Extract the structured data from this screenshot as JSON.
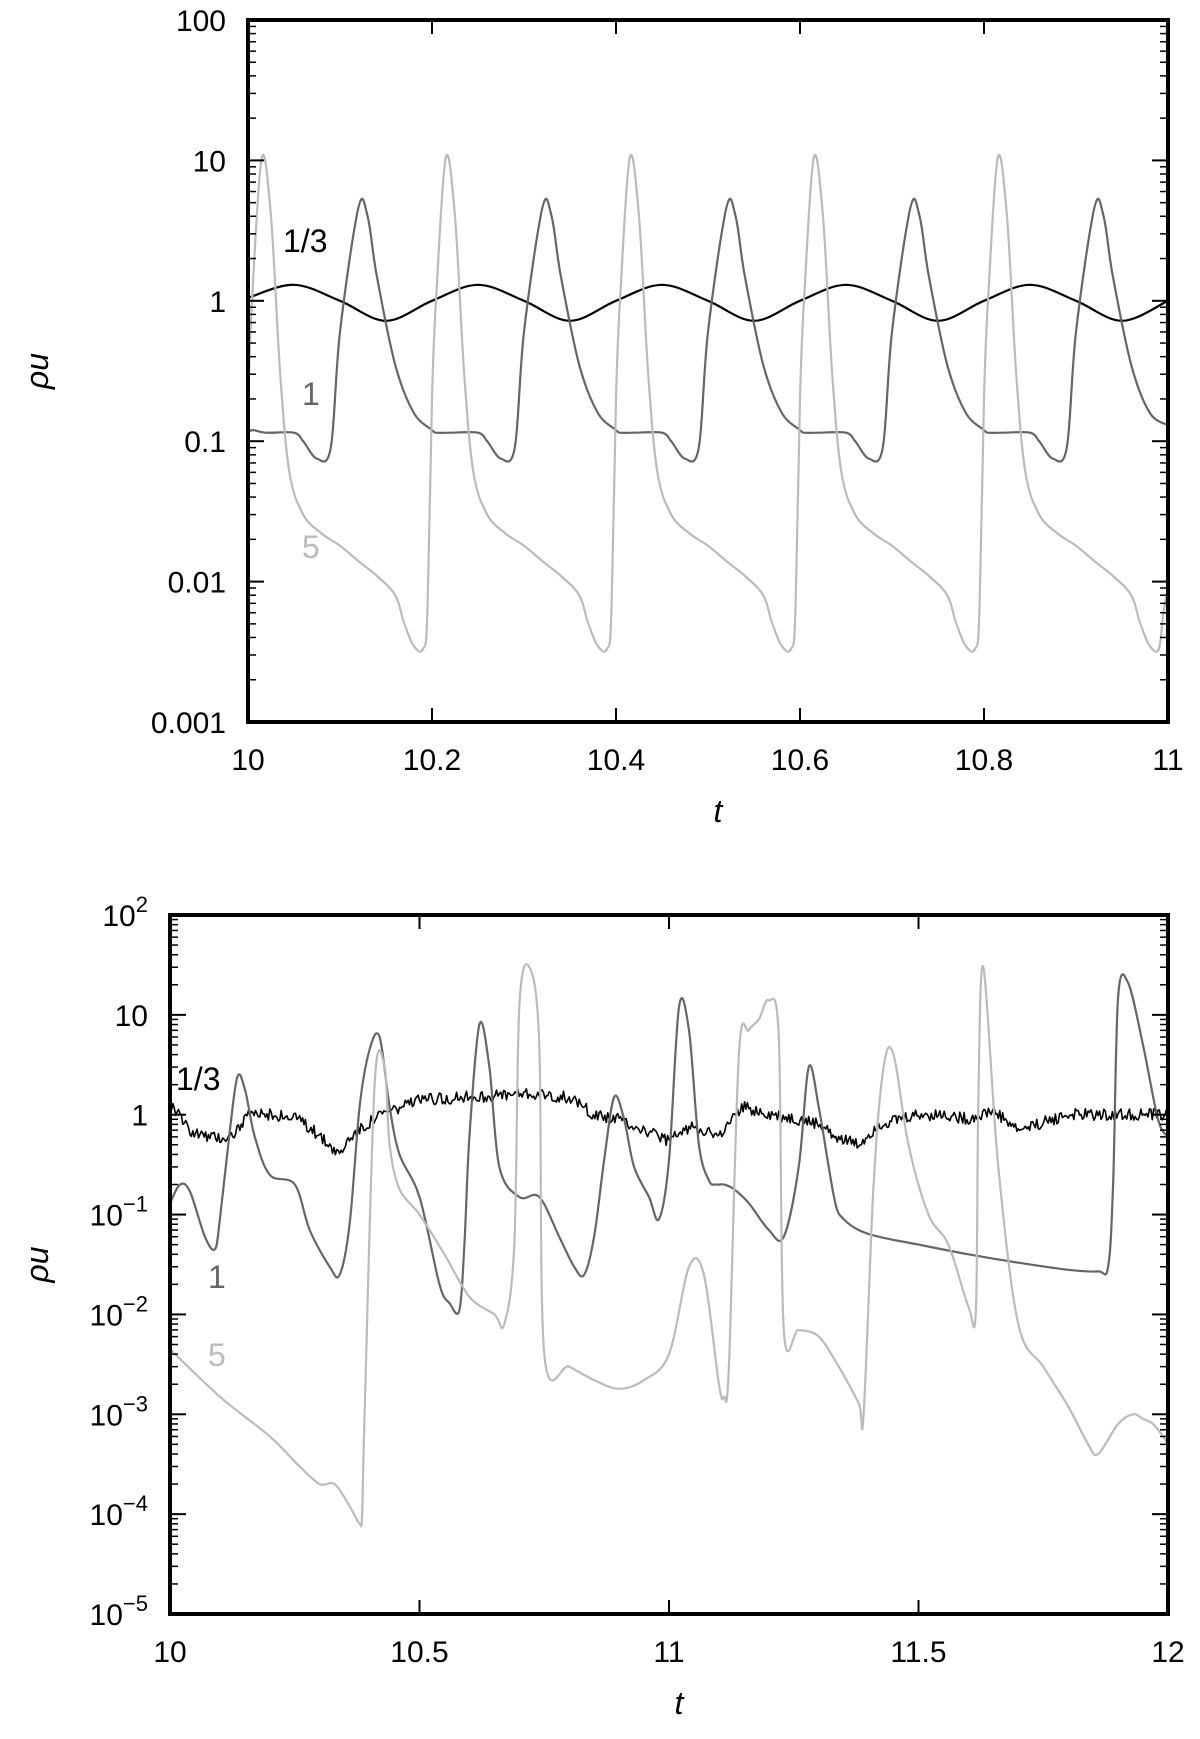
{
  "chart_data": [
    {
      "type": "line",
      "xlabel": "t",
      "ylabel": "ρu",
      "xlim": [
        10,
        11
      ],
      "ylim": [
        0.001,
        100
      ],
      "yscale": "log",
      "grid": false,
      "xticks": [
        10,
        10.2,
        10.4,
        10.6,
        10.8,
        11
      ],
      "xtick_labels": [
        "10",
        "10.2",
        "10.4",
        "10.6",
        "10.8",
        "11"
      ],
      "yticks": [
        0.001,
        0.01,
        0.1,
        1,
        10,
        100
      ],
      "ytick_labels": [
        "0.001",
        "0.01",
        "0.1",
        "1",
        "10",
        "100"
      ],
      "series": [
        {
          "name": "1/3",
          "color": "#000000",
          "x": [
            10,
            10.05,
            10.1,
            10.15,
            10.2,
            10.25,
            10.3,
            10.35,
            10.4,
            10.45,
            10.5,
            10.55,
            10.6,
            10.65,
            10.7,
            10.75,
            10.8,
            10.85,
            10.9,
            10.95,
            11
          ],
          "y": [
            1.05,
            1.3,
            1.0,
            0.72,
            1.0,
            1.3,
            1.0,
            0.72,
            1.0,
            1.3,
            1.0,
            0.72,
            1.0,
            1.3,
            1.0,
            0.72,
            1.0,
            1.3,
            1.0,
            0.72,
            1.0
          ]
        },
        {
          "name": "1",
          "color": "#666666",
          "x": [
            10,
            10.005,
            10.02,
            10.05,
            10.06,
            10.075,
            10.09,
            10.1,
            10.12,
            10.13,
            10.14,
            10.16,
            10.18,
            10.2,
            10.205,
            10.22,
            10.25,
            10.26,
            10.275,
            10.29,
            10.3,
            10.32,
            10.33,
            10.34,
            10.36,
            10.38,
            10.4,
            10.405,
            10.42,
            10.45,
            10.46,
            10.475,
            10.49,
            10.5,
            10.52,
            10.53,
            10.54,
            10.56,
            10.58,
            10.6,
            10.605,
            10.62,
            10.65,
            10.66,
            10.675,
            10.69,
            10.7,
            10.72,
            10.73,
            10.74,
            10.76,
            10.78,
            10.8,
            10.805,
            10.82,
            10.85,
            10.86,
            10.875,
            10.89,
            10.9,
            10.92,
            10.93,
            10.94,
            10.96,
            10.98,
            11
          ],
          "y": [
            0.115,
            0.12,
            0.115,
            0.115,
            0.1,
            0.075,
            0.09,
            0.6,
            4.6,
            4.0,
            1.5,
            0.35,
            0.16,
            0.12,
            0.115,
            0.115,
            0.115,
            0.1,
            0.075,
            0.09,
            0.6,
            4.6,
            4.0,
            1.5,
            0.35,
            0.16,
            0.12,
            0.115,
            0.115,
            0.115,
            0.1,
            0.075,
            0.09,
            0.6,
            4.6,
            4.0,
            1.5,
            0.35,
            0.16,
            0.12,
            0.115,
            0.115,
            0.115,
            0.1,
            0.075,
            0.09,
            0.6,
            4.6,
            4.0,
            1.5,
            0.35,
            0.16,
            0.12,
            0.115,
            0.115,
            0.115,
            0.1,
            0.075,
            0.09,
            0.6,
            4.6,
            4.0,
            1.5,
            0.35,
            0.16,
            0.13
          ]
        },
        {
          "name": "5",
          "color": "#bbbbbb",
          "x": [
            10,
            10.005,
            10.015,
            10.025,
            10.035,
            10.045,
            10.06,
            10.08,
            10.1,
            10.12,
            10.14,
            10.16,
            10.17,
            10.18,
            10.19,
            10.195,
            10.2,
            10.205,
            10.215,
            10.225,
            10.235,
            10.245,
            10.26,
            10.28,
            10.3,
            10.32,
            10.34,
            10.36,
            10.37,
            10.38,
            10.39,
            10.395,
            10.4,
            10.405,
            10.415,
            10.425,
            10.435,
            10.445,
            10.46,
            10.48,
            10.5,
            10.52,
            10.54,
            10.56,
            10.57,
            10.58,
            10.59,
            10.595,
            10.6,
            10.605,
            10.615,
            10.625,
            10.635,
            10.645,
            10.66,
            10.68,
            10.7,
            10.72,
            10.74,
            10.76,
            10.77,
            10.78,
            10.79,
            10.795,
            10.8,
            10.805,
            10.815,
            10.825,
            10.835,
            10.845,
            10.86,
            10.88,
            10.9,
            10.92,
            10.94,
            10.96,
            10.97,
            10.98,
            10.99,
            10.995,
            11
          ],
          "y": [
            0.2,
            1.2,
            10.5,
            4.0,
            0.3,
            0.06,
            0.03,
            0.022,
            0.018,
            0.014,
            0.011,
            0.008,
            0.005,
            0.0035,
            0.0033,
            0.006,
            0.2,
            1.2,
            10.5,
            4.0,
            0.3,
            0.06,
            0.03,
            0.022,
            0.018,
            0.014,
            0.011,
            0.008,
            0.005,
            0.0035,
            0.0033,
            0.006,
            0.2,
            1.2,
            10.5,
            4.0,
            0.3,
            0.06,
            0.03,
            0.022,
            0.018,
            0.014,
            0.011,
            0.008,
            0.005,
            0.0035,
            0.0033,
            0.006,
            0.2,
            1.2,
            10.5,
            4.0,
            0.3,
            0.06,
            0.03,
            0.022,
            0.018,
            0.014,
            0.011,
            0.008,
            0.005,
            0.0035,
            0.0033,
            0.006,
            0.2,
            1.2,
            10.5,
            4.0,
            0.3,
            0.06,
            0.03,
            0.022,
            0.018,
            0.014,
            0.011,
            0.008,
            0.005,
            0.0035,
            0.0033,
            0.006,
            0.009
          ]
        }
      ]
    },
    {
      "type": "line",
      "xlabel": "t",
      "ylabel": "ρu",
      "xlim": [
        10,
        12
      ],
      "ylim": [
        1e-05,
        100
      ],
      "yscale": "log",
      "grid": false,
      "xticks": [
        10,
        10.5,
        11,
        11.5,
        12
      ],
      "xtick_labels": [
        "10",
        "10.5",
        "11",
        "11.5",
        "12"
      ],
      "yticks": [
        1e-05,
        0.0001,
        0.001,
        0.01,
        0.1,
        1,
        10,
        100
      ],
      "ytick_labels": [
        {
          "base": "10",
          "exp": "−5"
        },
        {
          "base": "10",
          "exp": "−4"
        },
        {
          "base": "10",
          "exp": "−3"
        },
        {
          "base": "10",
          "exp": "−2"
        },
        {
          "base": "10",
          "exp": "−1"
        },
        {
          "base": "1",
          "exp": ""
        },
        {
          "base": "10",
          "exp": ""
        },
        {
          "base": "10",
          "exp": "2"
        }
      ],
      "series": [
        {
          "name": "1/3",
          "color": "#000000",
          "noise": 0.12,
          "x": [
            10,
            10.04,
            10.08,
            10.12,
            10.16,
            10.2,
            10.26,
            10.32,
            10.34,
            10.36,
            10.42,
            10.5,
            10.6,
            10.7,
            10.8,
            10.85,
            10.9,
            10.95,
            11.0,
            11.05,
            11.1,
            11.15,
            11.2,
            11.25,
            11.3,
            11.34,
            11.38,
            11.42,
            11.5,
            11.55,
            11.6,
            11.65,
            11.7,
            11.8,
            11.9,
            12.0
          ],
          "y": [
            1.3,
            0.7,
            0.6,
            0.6,
            1.0,
            1.0,
            0.9,
            0.5,
            0.4,
            0.6,
            1.0,
            1.4,
            1.5,
            1.6,
            1.5,
            1.0,
            0.9,
            0.7,
            0.55,
            0.8,
            0.6,
            1.2,
            1.0,
            0.9,
            0.8,
            0.6,
            0.5,
            0.8,
            1.0,
            1.0,
            0.9,
            1.1,
            0.7,
            1.0,
            1.0,
            1.0
          ]
        },
        {
          "name": "1",
          "color": "#666666",
          "x": [
            10,
            10.02,
            10.04,
            10.07,
            10.09,
            10.1,
            10.12,
            10.135,
            10.15,
            10.17,
            10.2,
            10.25,
            10.28,
            10.32,
            10.34,
            10.36,
            10.38,
            10.4,
            10.42,
            10.44,
            10.46,
            10.5,
            10.54,
            10.56,
            10.58,
            10.59,
            10.6,
            10.62,
            10.64,
            10.66,
            10.7,
            10.74,
            10.78,
            10.81,
            10.83,
            10.85,
            10.87,
            10.89,
            10.91,
            10.93,
            10.96,
            10.98,
            11.0,
            11.02,
            11.04,
            11.06,
            11.08,
            11.095,
            11.11,
            11.13,
            11.16,
            11.2,
            11.23,
            11.26,
            11.28,
            11.3,
            11.32,
            11.335,
            11.35,
            11.38,
            11.42,
            11.5,
            11.6,
            11.7,
            11.8,
            11.86,
            11.88,
            11.89,
            11.9,
            11.92,
            11.95,
            11.98,
            12.0
          ],
          "y": [
            0.13,
            0.2,
            0.17,
            0.06,
            0.045,
            0.09,
            0.7,
            2.4,
            1.8,
            0.6,
            0.25,
            0.2,
            0.07,
            0.03,
            0.025,
            0.08,
            1.2,
            4.5,
            6.0,
            1.2,
            0.4,
            0.15,
            0.02,
            0.013,
            0.011,
            0.05,
            0.6,
            8.0,
            3.0,
            0.3,
            0.15,
            0.15,
            0.06,
            0.03,
            0.025,
            0.06,
            0.35,
            1.5,
            0.9,
            0.3,
            0.15,
            0.09,
            0.35,
            12.0,
            7.0,
            0.5,
            0.22,
            0.2,
            0.2,
            0.18,
            0.13,
            0.07,
            0.06,
            0.3,
            3.0,
            1.2,
            0.3,
            0.12,
            0.09,
            0.07,
            0.06,
            0.05,
            0.04,
            0.033,
            0.028,
            0.027,
            0.03,
            0.2,
            15.0,
            21.0,
            5.0,
            0.9,
            0.6
          ]
        },
        {
          "name": "5",
          "color": "#bbbbbb",
          "x": [
            10,
            10.1,
            10.2,
            10.26,
            10.3,
            10.33,
            10.36,
            10.38,
            10.385,
            10.39,
            10.41,
            10.43,
            10.44,
            10.46,
            10.5,
            10.55,
            10.6,
            10.65,
            10.67,
            10.69,
            10.7,
            10.72,
            10.74,
            10.75,
            10.8,
            10.85,
            10.9,
            10.95,
            11.0,
            11.04,
            11.07,
            11.1,
            11.11,
            11.12,
            11.14,
            11.16,
            11.18,
            11.2,
            11.22,
            11.23,
            11.26,
            11.3,
            11.34,
            11.38,
            11.39,
            11.41,
            11.43,
            11.45,
            11.48,
            11.52,
            11.56,
            11.6,
            11.615,
            11.62,
            11.63,
            11.66,
            11.7,
            11.75,
            11.8,
            11.84,
            11.86,
            11.9,
            11.93,
            11.95,
            11.97,
            11.99,
            12.0
          ],
          "y": [
            0.0045,
            0.0015,
            0.0006,
            0.0003,
            0.0002,
            0.0002,
            0.00012,
            8e-05,
            0.0001,
            0.001,
            2.0,
            3.0,
            0.5,
            0.18,
            0.1,
            0.04,
            0.015,
            0.01,
            0.008,
            0.05,
            12.0,
            30.0,
            5.0,
            0.004,
            0.003,
            0.0022,
            0.0018,
            0.0022,
            0.004,
            0.03,
            0.025,
            0.002,
            0.0015,
            0.003,
            4.0,
            7.0,
            9.0,
            14.0,
            6.0,
            0.007,
            0.007,
            0.006,
            0.003,
            0.0013,
            0.001,
            0.2,
            3.0,
            4.0,
            0.5,
            0.1,
            0.05,
            0.012,
            0.011,
            1.5,
            30.0,
            0.3,
            0.008,
            0.003,
            0.0012,
            0.0005,
            0.0004,
            0.0008,
            0.001,
            0.0009,
            0.0008,
            0.0006,
            0.0005
          ]
        }
      ]
    }
  ]
}
